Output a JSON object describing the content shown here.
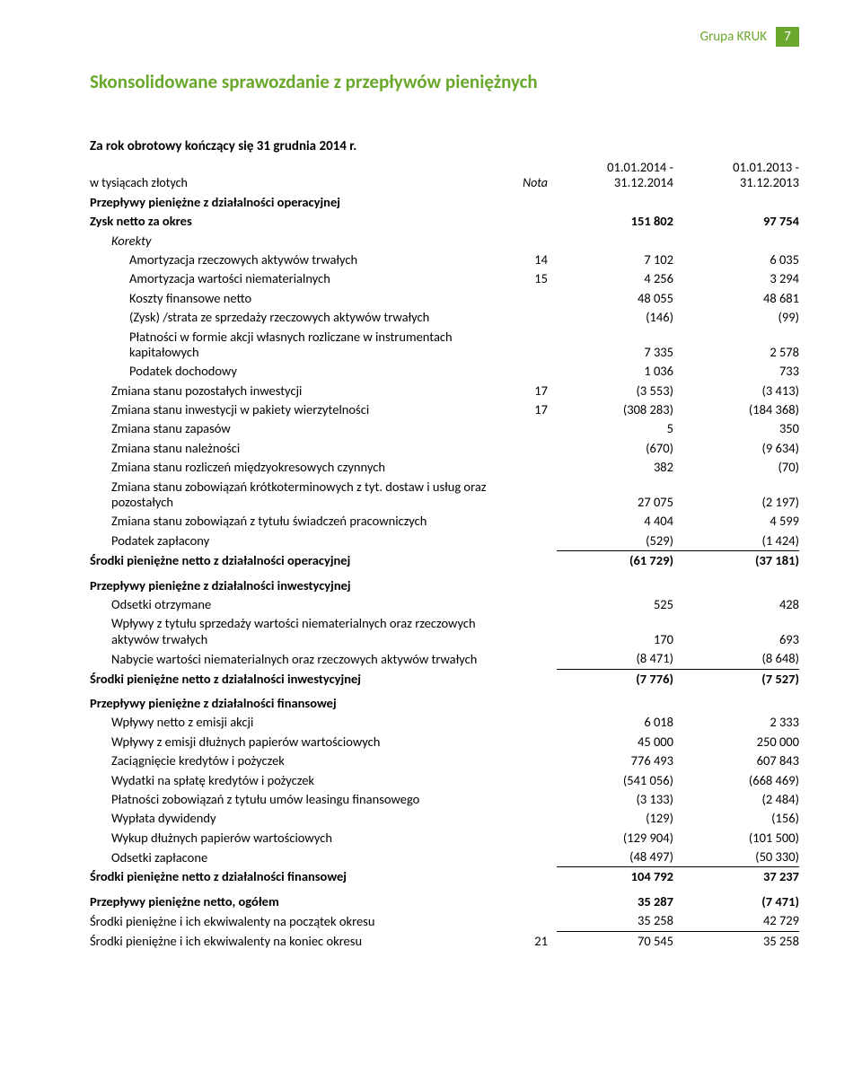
{
  "header": {
    "group_label": "Grupa KRUK",
    "page_number": "7"
  },
  "title": "Skonsolidowane sprawozdanie z przepływów pieniężnych",
  "subheading": "Za rok obrotowy kończący się 31 grudnia 2014 r.",
  "unit_note": "w tysiącach złotych",
  "nota_label": "Nota",
  "period1": "01.01.2014 - 31.12.2014",
  "period2": "01.01.2013 - 31.12.2013",
  "rows": {
    "r0": {
      "l": "Przepływy pieniężne z działalności operacyjnej"
    },
    "r1": {
      "l": "Zysk netto za okres",
      "c1": "151 802",
      "c2": "97 754"
    },
    "r2": {
      "l": "Korekty"
    },
    "r3": {
      "l": "Amortyzacja rzeczowych aktywów trwałych",
      "n": "14",
      "c1": "7 102",
      "c2": "6 035"
    },
    "r4": {
      "l": "Amortyzacja wartości niematerialnych",
      "n": "15",
      "c1": "4 256",
      "c2": "3 294"
    },
    "r5": {
      "l": "Koszty finansowe netto",
      "c1": "48 055",
      "c2": "48 681"
    },
    "r6": {
      "l": "(Zysk) /strata ze sprzedaży rzeczowych aktywów trwałych",
      "c1": "(146)",
      "c2": "(99)"
    },
    "r7": {
      "l": "Płatności w formie akcji własnych rozliczane w instrumentach kapitałowych",
      "c1": "7 335",
      "c2": "2 578"
    },
    "r8": {
      "l": "Podatek dochodowy",
      "c1": "1 036",
      "c2": "733"
    },
    "r9": {
      "l": "Zmiana stanu pozostałych inwestycji",
      "n": "17",
      "c1": "(3 553)",
      "c2": "(3 413)"
    },
    "r10": {
      "l": "Zmiana stanu inwestycji w pakiety wierzytelności",
      "n": "17",
      "c1": "(308 283)",
      "c2": "(184 368)"
    },
    "r11": {
      "l": "Zmiana stanu zapasów",
      "c1": "5",
      "c2": "350"
    },
    "r12": {
      "l": "Zmiana stanu należności",
      "c1": "(670)",
      "c2": "(9 634)"
    },
    "r13": {
      "l": "Zmiana stanu rozliczeń międzyokresowych czynnych",
      "c1": "382",
      "c2": "(70)"
    },
    "r14": {
      "l": "Zmiana stanu zobowiązań krótkoterminowych z tyt. dostaw i usług oraz pozostałych",
      "c1": "27 075",
      "c2": "(2 197)"
    },
    "r15": {
      "l": "Zmiana stanu zobowiązań z tytułu świadczeń pracowniczych",
      "c1": "4 404",
      "c2": "4 599"
    },
    "r16": {
      "l": "Podatek zapłacony",
      "c1": "(529)",
      "c2": "(1 424)"
    },
    "r17": {
      "l": "Środki pieniężne netto z działalności operacyjnej",
      "c1": "(61 729)",
      "c2": "(37 181)"
    },
    "r18": {
      "l": "Przepływy pieniężne z działalności inwestycyjnej"
    },
    "r19": {
      "l": "Odsetki otrzymane",
      "c1": "525",
      "c2": "428"
    },
    "r20": {
      "l": "Wpływy z tytułu sprzedaży wartości niematerialnych oraz rzeczowych aktywów trwałych",
      "c1": "170",
      "c2": "693"
    },
    "r21": {
      "l": "Nabycie wartości niematerialnych oraz rzeczowych aktywów trwałych",
      "c1": "(8 471)",
      "c2": "(8 648)"
    },
    "r22": {
      "l": "Środki pieniężne netto z działalności inwestycyjnej",
      "c1": "(7 776)",
      "c2": "(7 527)"
    },
    "r23": {
      "l": "Przepływy pieniężne z działalności finansowej"
    },
    "r24": {
      "l": "Wpływy netto z emisji akcji",
      "c1": "6 018",
      "c2": "2 333"
    },
    "r25": {
      "l": "Wpływy z emisji dłużnych papierów wartościowych",
      "c1": "45 000",
      "c2": "250 000"
    },
    "r26": {
      "l": "Zaciągnięcie kredytów i pożyczek",
      "c1": "776 493",
      "c2": "607 843"
    },
    "r27": {
      "l": "Wydatki na spłatę kredytów i pożyczek",
      "c1": "(541 056)",
      "c2": "(668 469)"
    },
    "r28": {
      "l": "Płatności zobowiązań z tytułu umów leasingu finansowego",
      "c1": "(3 133)",
      "c2": "(2 484)"
    },
    "r29": {
      "l": "Wypłata dywidendy",
      "c1": "(129)",
      "c2": "(156)"
    },
    "r30": {
      "l": "Wykup dłużnych papierów wartościowych",
      "c1": "(129 904)",
      "c2": "(101 500)"
    },
    "r31": {
      "l": "Odsetki zapłacone",
      "c1": "(48 497)",
      "c2": "(50 330)"
    },
    "r32": {
      "l": "Środki pieniężne netto z działalności finansowej",
      "c1": "104 792",
      "c2": "37 237"
    },
    "r33": {
      "l": "Przepływy pieniężne netto, ogółem",
      "c1": "35 287",
      "c2": "(7 471)"
    },
    "r34": {
      "l": "Środki pieniężne i ich ekwiwalenty na początek okresu",
      "c1": "35 258",
      "c2": "42 729"
    },
    "r35": {
      "l": "Środki pieniężne i ich ekwiwalenty na koniec okresu",
      "n": "21",
      "c1": "70 545",
      "c2": "35 258"
    }
  },
  "colors": {
    "accent": "#6aa82d",
    "text": "#000000",
    "bg": "#ffffff"
  }
}
